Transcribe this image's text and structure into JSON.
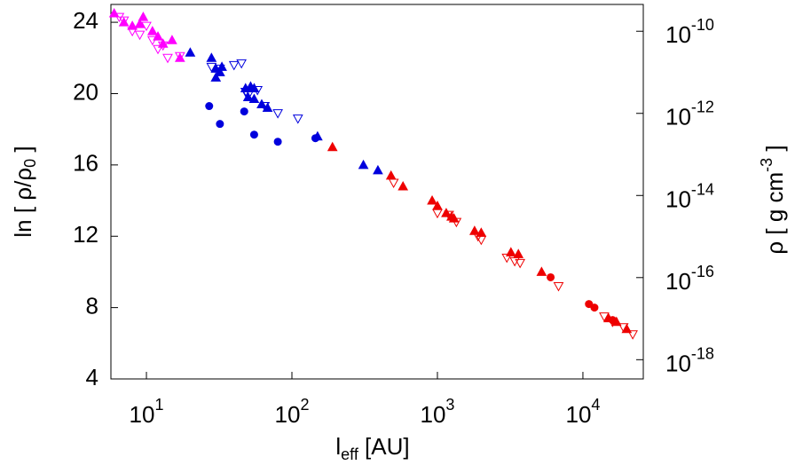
{
  "chart_data": {
    "type": "scatter",
    "x_label": {
      "text": "l",
      "sub": "eff",
      "after": " [AU]"
    },
    "y_label": {
      "text": "ln [ ρ/ρ",
      "sub": "0",
      "after": " ]"
    },
    "y2_label": {
      "text": "ρ [ g cm",
      "sup": "-3",
      "after": " ]"
    },
    "xscale": "log",
    "y2scale": "log",
    "xlim": [
      5.7,
      26000
    ],
    "ylim": [
      4,
      25
    ],
    "y2lim": [
      3.4e-19,
      4.5e-10
    ],
    "xticks": [
      {
        "value": 10,
        "label": "10",
        "exponent": "1"
      },
      {
        "value": 100,
        "label": "10",
        "exponent": "2"
      },
      {
        "value": 1000,
        "label": "10",
        "exponent": "3"
      },
      {
        "value": 10000,
        "label": "10",
        "exponent": "4"
      }
    ],
    "yticks": [
      4,
      8,
      12,
      16,
      20,
      24
    ],
    "y2ticks": [
      {
        "value": 1e-10,
        "label": "10",
        "exponent": "-10"
      },
      {
        "value": 1e-12,
        "label": "10",
        "exponent": "-12"
      },
      {
        "value": 1e-14,
        "label": "10",
        "exponent": "-14"
      },
      {
        "value": 1e-16,
        "label": "10",
        "exponent": "-16"
      },
      {
        "value": 1e-18,
        "label": "10",
        "exponent": "-18"
      }
    ],
    "series": [
      {
        "color": "#ff00ff",
        "marker": "triangle-up",
        "filled": true,
        "x": [
          6.0,
          7.0,
          8.0,
          9.5,
          11,
          12,
          13,
          15,
          17,
          9
        ],
        "values": [
          24.5,
          24,
          23.8,
          24.3,
          23.5,
          23.2,
          22.8,
          23,
          22,
          23.9
        ]
      },
      {
        "color": "#ff00ff",
        "marker": "triangle-down",
        "filled": false,
        "x": [
          6.5,
          7,
          8,
          9,
          10,
          11,
          12,
          13,
          14,
          17
        ],
        "values": [
          24.3,
          24.1,
          23.5,
          23.3,
          23.8,
          23,
          22.5,
          22.7,
          22,
          22.1
        ]
      },
      {
        "color": "#0000dd",
        "marker": "triangle-up",
        "filled": true,
        "x": [
          20,
          28,
          30,
          32,
          33,
          30,
          48,
          52,
          55,
          50,
          55,
          62,
          68,
          150,
          310,
          390
        ],
        "values": [
          22.3,
          22,
          21.4,
          21.2,
          21.5,
          20.9,
          20.3,
          20.4,
          20.3,
          19.8,
          19.7,
          19.4,
          19.2,
          17.6,
          16,
          15.7
        ]
      },
      {
        "color": "#0000dd",
        "marker": "triangle-down",
        "filled": false,
        "x": [
          28,
          32,
          40,
          45,
          48,
          50,
          58,
          65,
          80,
          110
        ],
        "values": [
          21.5,
          21.4,
          21.6,
          21.7,
          20.1,
          19.9,
          20.2,
          19.3,
          18.9,
          18.6
        ]
      },
      {
        "color": "#0000dd",
        "marker": "circle",
        "filled": true,
        "x": [
          27,
          32,
          47,
          55,
          80,
          145
        ],
        "values": [
          19.3,
          18.3,
          19,
          17.7,
          17.3,
          17.5
        ]
      },
      {
        "color": "#ee0000",
        "marker": "triangle-up",
        "filled": true,
        "x": [
          190,
          480,
          580,
          920,
          1000,
          1150,
          1250,
          1300,
          1800,
          2000,
          3200,
          3600,
          5200,
          15000,
          17000,
          20000
        ],
        "values": [
          17,
          15.4,
          14.8,
          14,
          13.7,
          13.3,
          13.1,
          13,
          12.3,
          12.2,
          11.1,
          11,
          10,
          7.4,
          7.2,
          6.8
        ]
      },
      {
        "color": "#ee0000",
        "marker": "triangle-down",
        "filled": false,
        "x": [
          500,
          1000,
          1200,
          1350,
          1900,
          2000,
          3000,
          3400,
          3700,
          6800,
          14000,
          16000,
          19000,
          22000
        ],
        "values": [
          15,
          13.3,
          13.2,
          12.8,
          12,
          11.8,
          10.8,
          10.6,
          10.5,
          9.2,
          7.5,
          7.2,
          6.9,
          6.5
        ]
      },
      {
        "color": "#ee0000",
        "marker": "circle",
        "filled": true,
        "x": [
          6000,
          11000,
          12000,
          16000
        ],
        "values": [
          9.7,
          8.2,
          8,
          7.3
        ]
      }
    ]
  }
}
